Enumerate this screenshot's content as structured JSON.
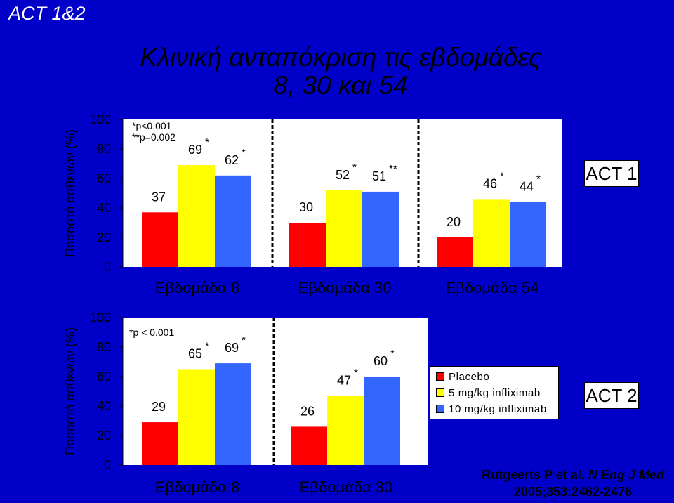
{
  "corner_title": "ACT 1&2",
  "main_title": {
    "line1": "Κλινική ανταπόκριση τις εβδομάδες",
    "line2": "8, 30 και 54"
  },
  "colors": {
    "background": "#0000c8",
    "placebo": "#ff0000",
    "dose5": "#ffff00",
    "dose10": "#3366ff",
    "plot_area": "#ffffff"
  },
  "legend": [
    {
      "label": "Placebo",
      "color": "#ff0000"
    },
    {
      "label": "5 mg/kg infliximab",
      "color": "#ffff00"
    },
    {
      "label": "10 mg/kg infliximab",
      "color": "#3366ff"
    }
  ],
  "citation": {
    "prefix": "Rutgeerts P et al. ",
    "journal": "N Eng J Med",
    "details": "2005;353:2462-2476"
  },
  "chart_data": [
    {
      "type": "bar",
      "label": "ACT 1",
      "ylabel": "Ποσοστό ασθενών (%)",
      "ylim": [
        0,
        100
      ],
      "yticks": [
        0,
        20,
        40,
        60,
        80,
        100
      ],
      "notes": [
        "*p<0.001",
        "**p=0.002"
      ],
      "categories": [
        "Εβδομάδα 8",
        "Εβδομάδα 30",
        "Εβδομάδα 54"
      ],
      "series": [
        {
          "name": "Placebo",
          "values": [
            37,
            30,
            20
          ],
          "marks": [
            "",
            "",
            ""
          ]
        },
        {
          "name": "5 mg/kg infliximab",
          "values": [
            69,
            52,
            46
          ],
          "marks": [
            "*",
            "*",
            "*"
          ]
        },
        {
          "name": "10 mg/kg infliximab",
          "values": [
            62,
            51,
            44
          ],
          "marks": [
            "*",
            "**",
            "*"
          ]
        }
      ]
    },
    {
      "type": "bar",
      "label": "ACT 2",
      "ylabel": "Ποσοστό ασθενών (%)",
      "ylim": [
        0,
        100
      ],
      "yticks": [
        0,
        20,
        40,
        60,
        80,
        100
      ],
      "notes": [
        "*p < 0.001"
      ],
      "categories": [
        "Εβδομάδα 8",
        "Εβδομάδα 30"
      ],
      "series": [
        {
          "name": "Placebo",
          "values": [
            29,
            26
          ],
          "marks": [
            "",
            ""
          ]
        },
        {
          "name": "5 mg/kg infliximab",
          "values": [
            65,
            47
          ],
          "marks": [
            "*",
            "*"
          ]
        },
        {
          "name": "10 mg/kg infliximab",
          "values": [
            69,
            60
          ],
          "marks": [
            "*",
            "*"
          ]
        }
      ]
    }
  ]
}
